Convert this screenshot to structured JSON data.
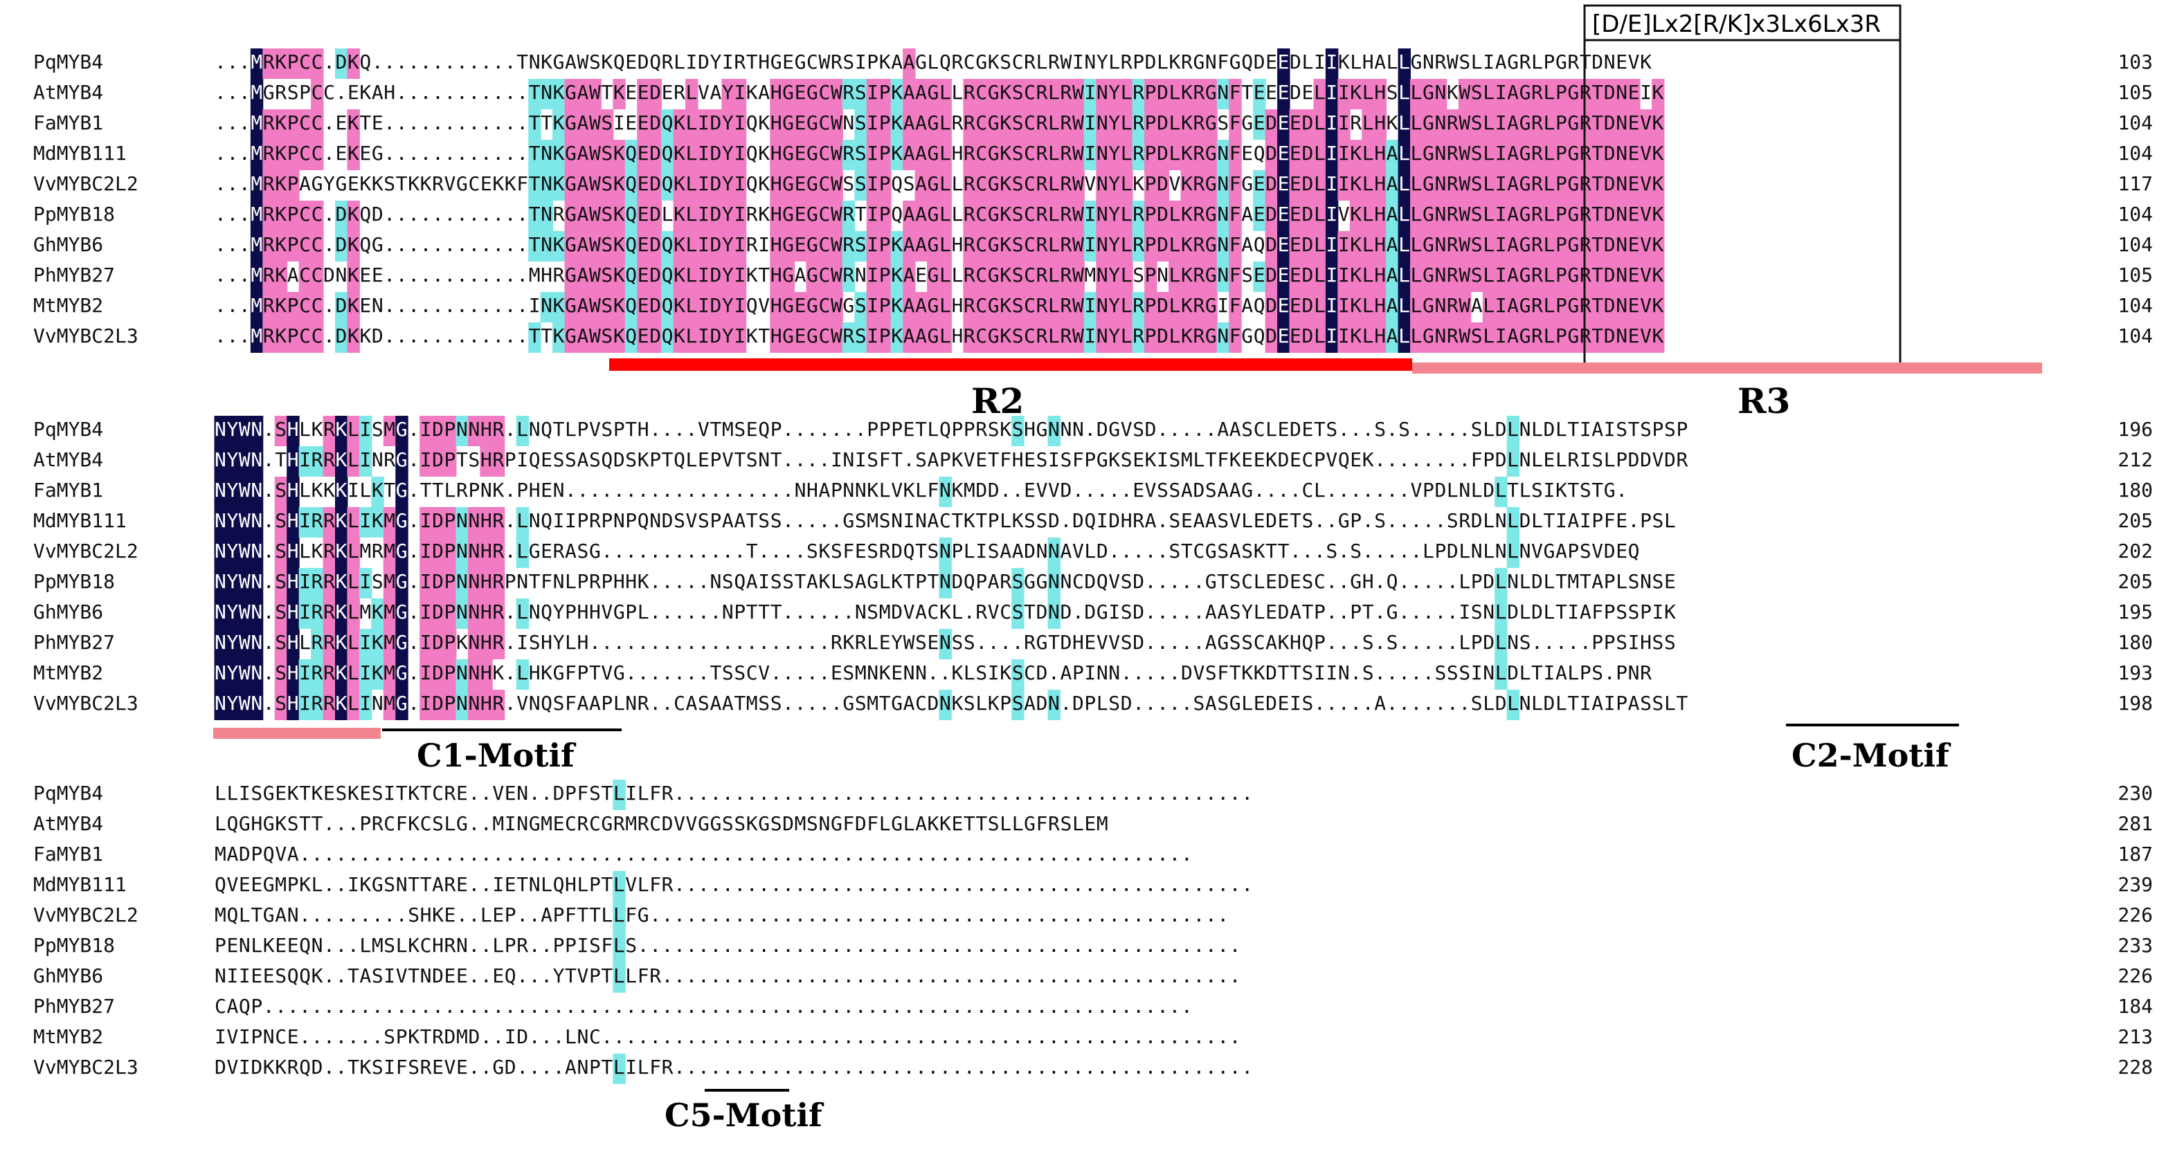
{
  "colors": {
    "identical": "#0c0c4a",
    "identical_text": "#ffffff",
    "high": "#f27cc3",
    "low": "#7ee8e8",
    "plain_text": "#111111",
    "r2_bar": "#ff0000",
    "r3_bar": "#f2858f",
    "box": "#111111"
  },
  "motif_box_title": "[D/E]Lx2[R/K]x3Lx6Lx3R",
  "domain_labels": [
    {
      "id": "r2",
      "text": "R2"
    },
    {
      "id": "r3",
      "text": "R3"
    }
  ],
  "motif_labels": [
    {
      "id": "c1",
      "text": "C1-Motif"
    },
    {
      "id": "c2",
      "text": "C2-Motif"
    },
    {
      "id": "c5",
      "text": "C5-Motif"
    }
  ],
  "species": [
    "PqMYB4",
    "AtMYB4",
    "FaMYB1",
    "MdMYB111",
    "VvMYBC2L2",
    "PpMYB18",
    "GhMYB6",
    "PhMYB27",
    "MtMYB2",
    "VvMYBC2L3"
  ],
  "blocks": [
    {
      "id": "block1",
      "rows": [
        {
          "name": "PqMYB4",
          "seq": "...MRKPCC.DKQ............TNKGAWSKQEDQRLIDYIRTHGEGCWRSIPKAAGLQRCGKSCRLRWINYLRPDLKRGNFGQDEEDLIIKLHALLGNRWSLIAGRLPGRTDNEVK",
          "end": "103"
        },
        {
          "name": "AtMYB4",
          "seq": "...MGRSPCC.EKAH...........TNKGAWTKEEDERLVAYIKAHGEGCWRSIPKAAGLLRCGKSCRLRWINYLRPDLKRGNFTEEEDELIIKLHSLLGNKWSLIAGRLPGRTDNEIK",
          "end": "105"
        },
        {
          "name": "FaMYB1",
          "seq": "...MRKPCC.EKTE............TTKGAWSIEEDQKLIDYIQKHGEGCWNSIPKAAGLRRCGKSCRLRWINYLRPDLKRGSFGEDEEDLIIRLHKLLGNRWSLIAGRLPGRTDNEVK",
          "end": "104"
        },
        {
          "name": "MdMYB111",
          "seq": "...MRKPCC.EKEG............TNKGAWSKQEDQKLIDYIQKHGEGCWRSIPKAAGLHRCGKSCRLRWINYLRPDLKRGNFEQDEEDLIIKLHALLGNRWSLIAGRLPGRTDNEVK",
          "end": "104"
        },
        {
          "name": "VvMYBC2L2",
          "seq": "...MRKPAGYGEKKSTKKRVGCEKKFTNKGAWSKQEDQKLIDYIQKHGEGCWSSIPQSAGLLRCGKSCRLRWVNYLKPDVKRGNFGEDEEDLIIKLHALLGNRWSLIAGRLPGRTDNEVK",
          "end": "117"
        },
        {
          "name": "PpMYB18",
          "seq": "...MRKPCC.DKQD............TNRGAWSKQEDLKLIDYIRKHGEGCWRTIPQAAGLLRCGKSCRLRWINYLRPDLKRGNFAEDEEDLIVKLHALLGNRWSLIAGRLPGRTDNEVK",
          "end": "104"
        },
        {
          "name": "GhMYB6",
          "seq": "...MRKPCC.DKQG............TNKGAWSKQEDQKLIDYIRIHGEGCWRSIPKAAGLHRCGKSCRLRWINYLRPDLKRGNFAQDEEDLIIKLHALLGNRWSLIAGRLPGRTDNEVK",
          "end": "104"
        },
        {
          "name": "PhMYB27",
          "seq": "...MRKACCDNKEE............MHRGAWSKQEDQKLIDYIKTHGAGCWRNIPKAEGLLRCGKSCRLRWMNYLSPNLKRGNFSEDEEDLIIKLHALLGNRWSLIAGRLPGRTDNEVK",
          "end": "105"
        },
        {
          "name": "MtMYB2",
          "seq": "...MRKPCC.DKEN............INKGAWSKQEDQKLIDYIQVHGEGCWGSIPKAAGLHRCGKSCRLRWINYLRPDLKRGIFAQDEEDLIIKLHALLGNRWALIAGRLPGRTDNEVK",
          "end": "104"
        },
        {
          "name": "VvMYBC2L3",
          "seq": "...MRKPCC.DKKD............TTKGAWSKQEDQKLIDYIKTHGEGCWRSIPKAAGLHRCGKSCRLRWINYLRPDLKRGNFGQDEEDLIIKLHALLGNRWSLIAGRLPGRTDNEVK",
          "end": "104"
        }
      ]
    },
    {
      "id": "block2",
      "rows": [
        {
          "name": "PqMYB4",
          "seq": "NYWN.SHLKRKLISMG.IDPNNHR.LNQTLPVSPTH....VTMSEQP.......PPPETLQPPRSKSHGNNN.DGVSD.....AASCLEDETS...S.S.....SLDLNLDLTIAISTSPSP",
          "end": "196"
        },
        {
          "name": "AtMYB4",
          "seq": "NYWN.THIRRKLINRG.IDPTSHRPIQESSASQDSKPTQLEPVTSNT....INISFT.SAPKVETFHESISFPGKSEKISMLTFKEEKDECPVQEK........FPDLNLELRISLPDDVDR",
          "end": "212"
        },
        {
          "name": "FaMYB1",
          "seq": "NYWN.SHLKKKILKTG.TTLRPNK.PHEN...................NHAPNNKLVKLFNKMDD..EVVD.....EVSSADSAAG....CL.......VPDLNLDLTLSIKTSTG.",
          "end": "180"
        },
        {
          "name": "MdMYB111",
          "seq": "NYWN.SHIRRKLIKMG.IDPNNHR.LNQIIPRPNPQNDSVSPAATSS.....GSMSNINACTKTPLKSSD.DQIDHRA.SEAASVLEDETS..GP.S.....SRDLNLDLTIAIPFE.PSL",
          "end": "205"
        },
        {
          "name": "VvMYBC2L2",
          "seq": "NYWN.SHLKRKLMRMG.IDPNNHR.LGERASG............T....SKSFESRDQTSNPLISAADNNAVLD.....STCGSASKTT...S.S.....LPDLNLNLNVGAPSVDEQ",
          "end": "202"
        },
        {
          "name": "PpMYB18",
          "seq": "NYWN.SHIRRKLISMG.IDPNNHRPNTFNLPRPHHK.....NSQAISSTAKLSAGLKTPTNDQPARSGGNNCDQVSD.....GTSCLEDESC..GH.Q.....LPDLNLDLTMTAPLSNSE",
          "end": "205"
        },
        {
          "name": "GhMYB6",
          "seq": "NYWN.SHIRRKLMKMG.IDPNNHR.LNQYPHHVGPL......NPTTT......NSMDVACKL.RVCSTDND.DGISD.....AASYLEDATP..PT.G.....ISNLDLDLTIAFPSSPIK",
          "end": "195"
        },
        {
          "name": "PhMYB27",
          "seq": "NYWN.SHLRRKLIKMG.IDPKNHR.ISHYLH....................RKRLEYWSENSS....RGTDHEVVSD.....AGSSCAKHQP...S.S.....LPDLNS.....PPSIHSS",
          "end": "180"
        },
        {
          "name": "MtMYB2",
          "seq": "NYWN.SHIRRKLIKMG.IDPNNHK.LHKGFPTVG.......TSSCV.....ESMNKENN..KLSIKSCD.APINN.....DVSFTKKDTTSIIN.S.....SSSINLDLTIALPS.PNR",
          "end": "193"
        },
        {
          "name": "VvMYBC2L3",
          "seq": "NYWN.SHIRRKLINMG.IDPNNHR.VNQSFAAPLNR..CASAATMSS.....GSMTGACDNKSLKPSADN.DPLSD.....SASGLEDEIS.....A.......SLDLNLDLTIAIPASSLT",
          "end": "198"
        }
      ]
    },
    {
      "id": "block3",
      "rows": [
        {
          "name": "PqMYB4",
          "seq": "LLISGEKTKESKESITKTCRE..VEN..DPFSTLILFR................................................",
          "end": "230"
        },
        {
          "name": "AtMYB4",
          "seq": "LQGHGKSTT...PRCFKCSLG..MINGMECRCGRMRCDVVGGSSKGSDMSNGFDFLGLAKKETTSLLGFRSLEM",
          "end": "281"
        },
        {
          "name": "FaMYB1",
          "seq": "MADPQVA..........................................................................",
          "end": "187"
        },
        {
          "name": "MdMYB111",
          "seq": "QVEEGMPKL..IKGSNTTARE..IETNLQHLPTLVLFR................................................",
          "end": "239"
        },
        {
          "name": "VvMYBC2L2",
          "seq": "MQLTGAN.........SHKE..LEP..APFTTLLFG................................................",
          "end": "226"
        },
        {
          "name": "PpMYB18",
          "seq": "PENLKEEQN...LMSLKCHRN..LPR..PPISFLS..................................................",
          "end": "233"
        },
        {
          "name": "GhMYB6",
          "seq": "NIIEESQQK..TASIVTNDEE..EQ...YTVPTLLFR................................................",
          "end": "226"
        },
        {
          "name": "PhMYB27",
          "seq": "CAQP.............................................................................",
          "end": "184"
        },
        {
          "name": "MtMYB2",
          "seq": "IVIPNCE.......SPKTRDMD..ID...LNC.....................................................",
          "end": "213"
        },
        {
          "name": "VvMYBC2L3",
          "seq": "DVIDKKRQD..TKSIFSREVE..GD....ANPTLILFR................................................",
          "end": "228"
        }
      ]
    }
  ]
}
